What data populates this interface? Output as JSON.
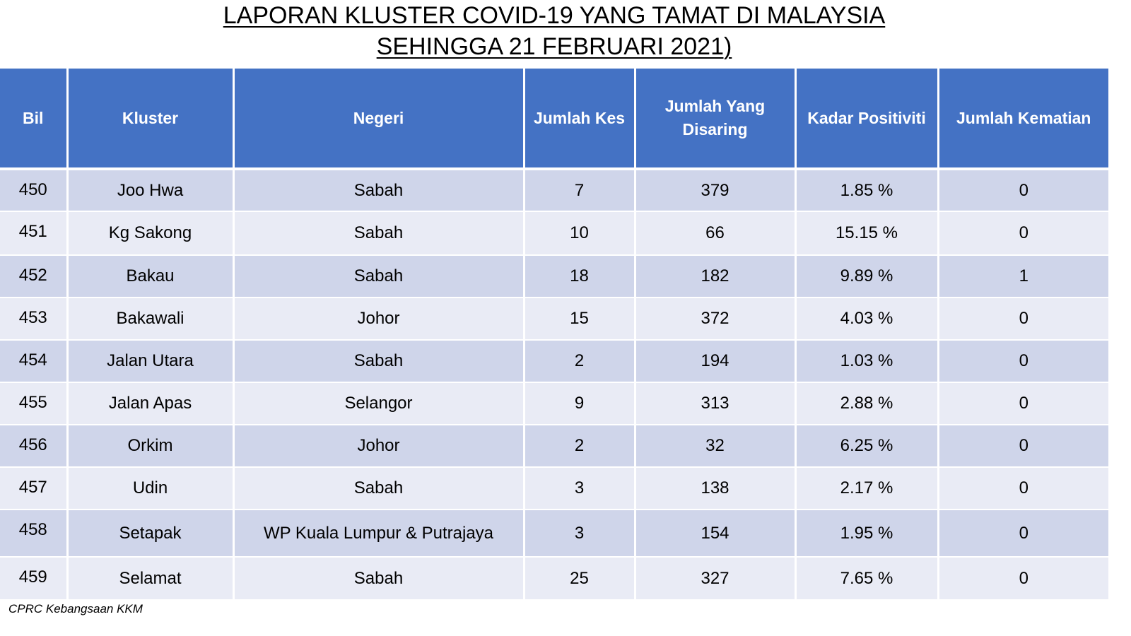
{
  "title": {
    "line1": "LAPORAN KLUSTER COVID-19 YANG TAMAT DI MALAYSIA",
    "line2": "SEHINGGA 21 FEBRUARI 2021)"
  },
  "table": {
    "headers": {
      "bil": "Bil",
      "kluster": "Kluster",
      "negeri": "Negeri",
      "jumlah_kes": "Jumlah Kes",
      "jumlah_disaring": "Jumlah Yang Disaring",
      "kadar_positiviti": "Kadar Positiviti",
      "jumlah_kematian": "Jumlah Kematian"
    },
    "colors": {
      "header_bg": "#4472c4",
      "row_dark": "#cfd5ea",
      "row_light": "#e9ebf5"
    },
    "rows": [
      {
        "bil": "450",
        "kluster": "Joo Hwa",
        "negeri": "Sabah",
        "kes": "7",
        "disaring": "379",
        "positiviti": "1.85 %",
        "kematian": "0"
      },
      {
        "bil": "451",
        "kluster": "Kg Sakong",
        "negeri": "Sabah",
        "kes": "10",
        "disaring": "66",
        "positiviti": "15.15 %",
        "kematian": "0"
      },
      {
        "bil": "452",
        "kluster": "Bakau",
        "negeri": "Sabah",
        "kes": "18",
        "disaring": "182",
        "positiviti": "9.89 %",
        "kematian": "1"
      },
      {
        "bil": "453",
        "kluster": "Bakawali",
        "negeri": "Johor",
        "kes": "15",
        "disaring": "372",
        "positiviti": "4.03 %",
        "kematian": "0"
      },
      {
        "bil": "454",
        "kluster": "Jalan Utara",
        "negeri": "Sabah",
        "kes": "2",
        "disaring": "194",
        "positiviti": "1.03 %",
        "kematian": "0"
      },
      {
        "bil": "455",
        "kluster": "Jalan Apas",
        "negeri": "Selangor",
        "kes": "9",
        "disaring": "313",
        "positiviti": "2.88 %",
        "kematian": "0"
      },
      {
        "bil": "456",
        "kluster": "Orkim",
        "negeri": "Johor",
        "kes": "2",
        "disaring": "32",
        "positiviti": "6.25 %",
        "kematian": "0"
      },
      {
        "bil": "457",
        "kluster": "Udin",
        "negeri": "Sabah",
        "kes": "3",
        "disaring": "138",
        "positiviti": "2.17 %",
        "kematian": "0"
      },
      {
        "bil": "458",
        "kluster": "Setapak",
        "negeri": "WP Kuala Lumpur & Putrajaya",
        "kes": "3",
        "disaring": "154",
        "positiviti": "1.95 %",
        "kematian": "0"
      },
      {
        "bil": "459",
        "kluster": "Selamat",
        "negeri": "Sabah",
        "kes": "25",
        "disaring": "327",
        "positiviti": "7.65 %",
        "kematian": "0"
      }
    ]
  },
  "source": "CPRC Kebangsaan KKM"
}
